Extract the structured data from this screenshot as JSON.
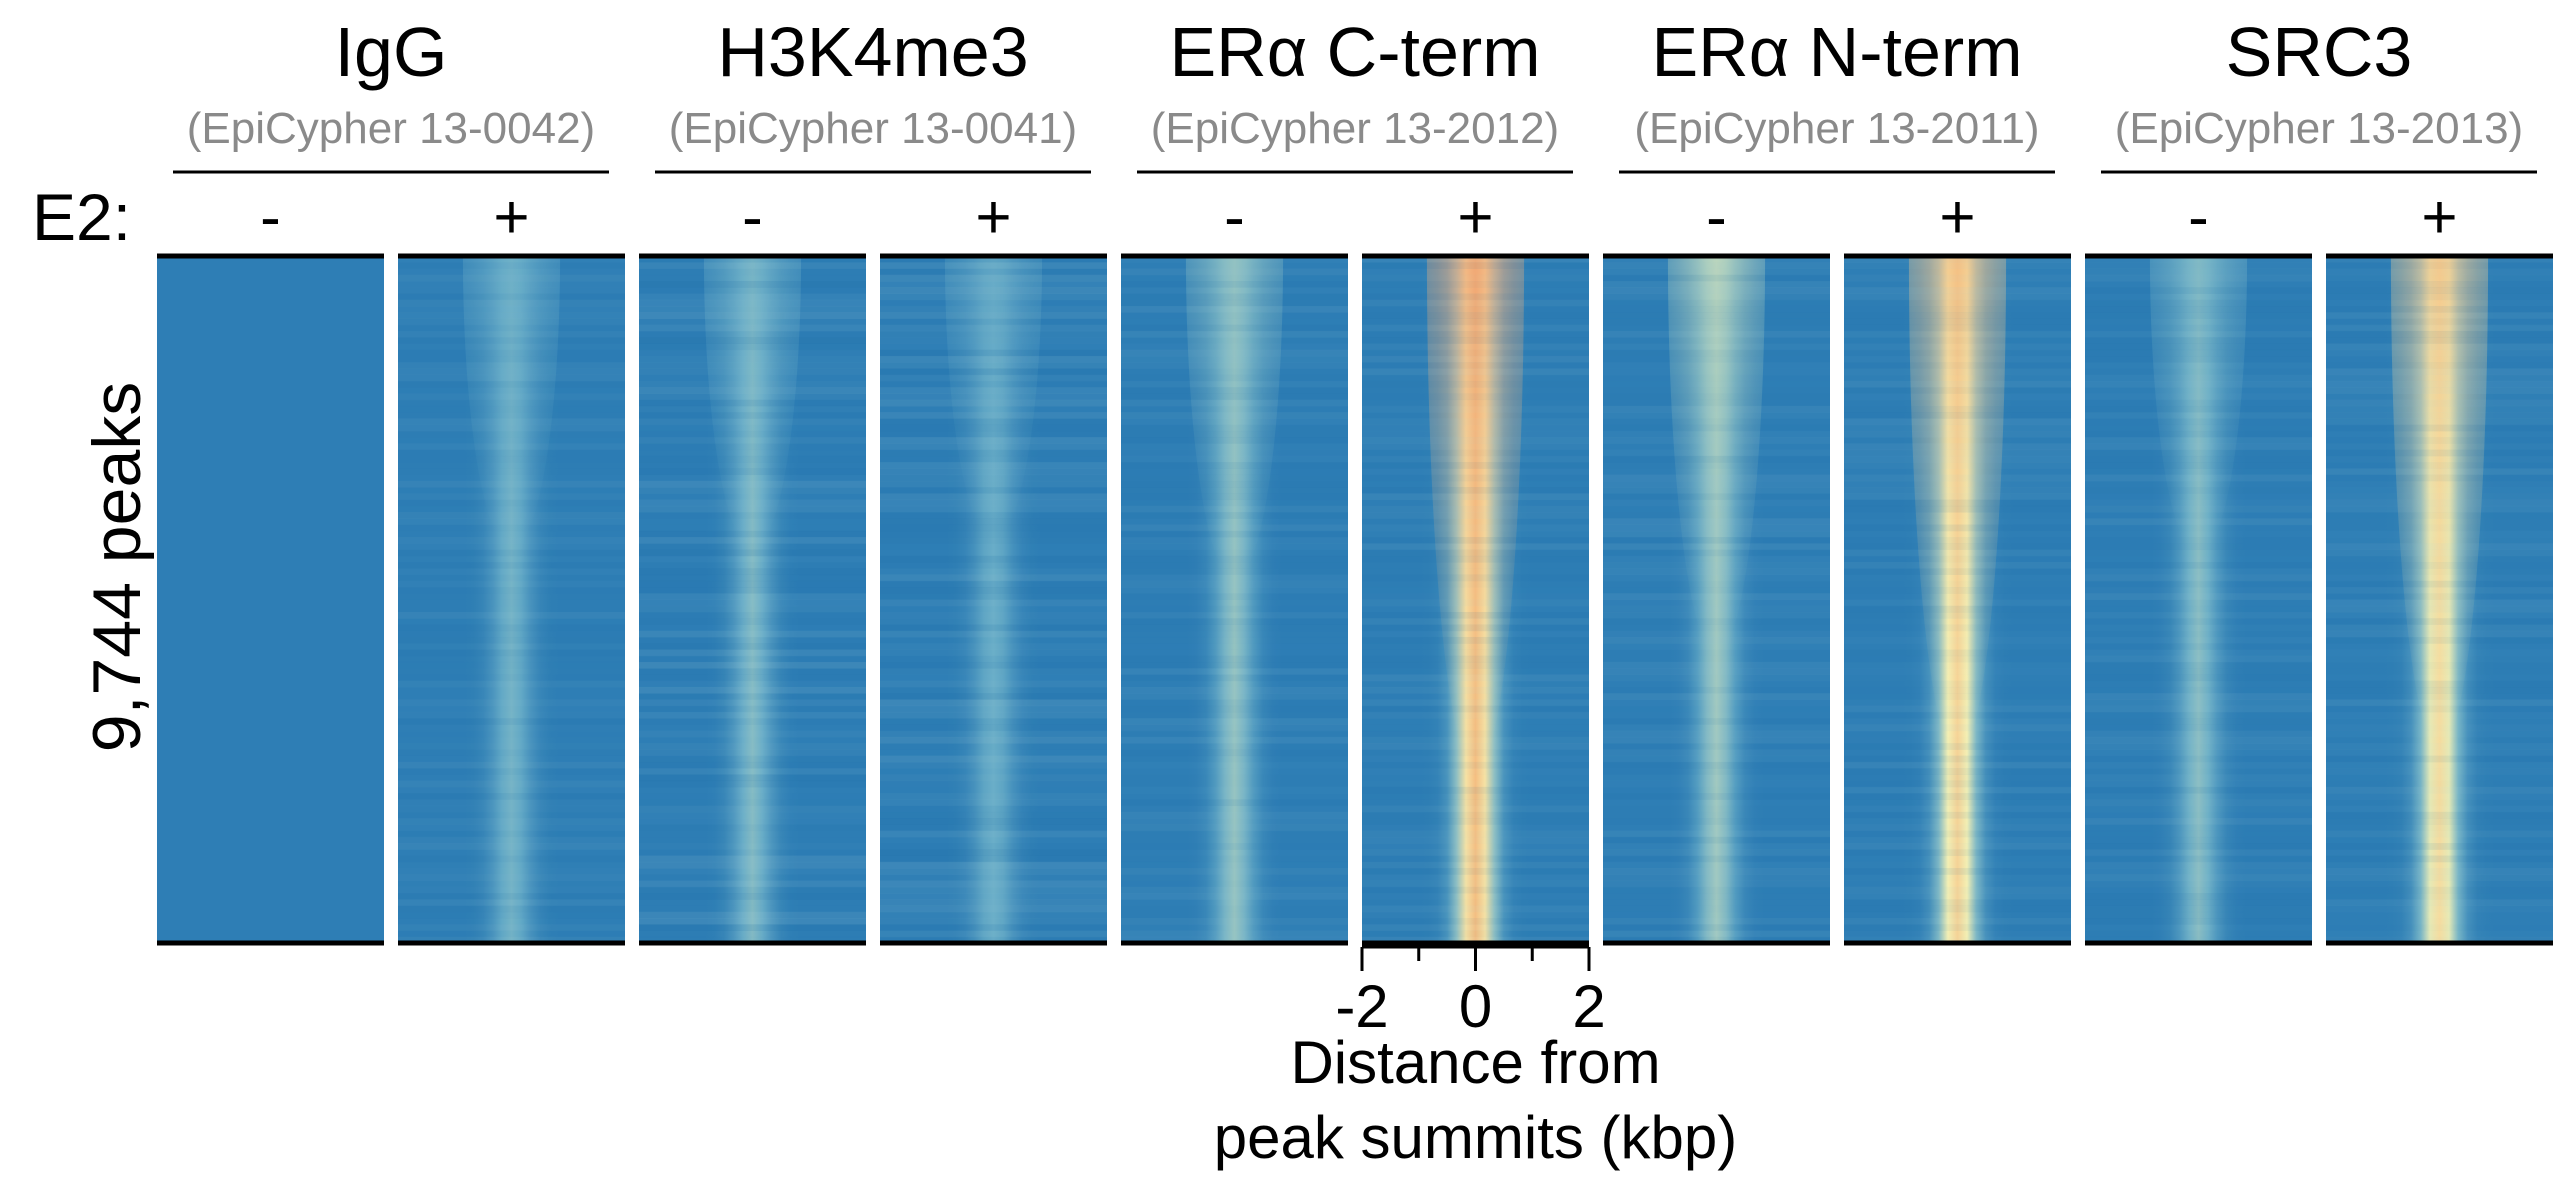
{
  "chart_data": {
    "type": "heatmap",
    "row_label": "9,744 peaks",
    "condition_label": "E2:",
    "colormap": [
      "#1f72b0",
      "#6aaec8",
      "#f7f2b3",
      "#f4a56a",
      "#dd2c34"
    ],
    "x_axis": {
      "label_line1": "Distance from",
      "label_line2": "peak summits (kbp)",
      "range": [
        -2,
        2
      ],
      "major_ticks": [
        -2,
        0,
        2
      ],
      "major_tick_labels": [
        "-2",
        "0",
        "2"
      ],
      "minor_ticks": [
        -1,
        1
      ]
    },
    "groups": [
      {
        "name": "IgG",
        "catalog": "(EpiCypher 13-0042)",
        "panels": [
          {
            "condition": "-",
            "signal": 0.0,
            "top_peak": 0.0,
            "noise": 0.03
          },
          {
            "condition": "+",
            "signal": 0.22,
            "top_peak": 0.28,
            "noise": 0.18
          }
        ]
      },
      {
        "name": "H3K4me3",
        "catalog": "(EpiCypher 13-0041)",
        "panels": [
          {
            "condition": "-",
            "signal": 0.25,
            "top_peak": 0.28,
            "noise": 0.3
          },
          {
            "condition": "+",
            "signal": 0.2,
            "top_peak": 0.25,
            "noise": 0.3
          }
        ]
      },
      {
        "name": "ERα C-term",
        "catalog": "(EpiCypher 13-2012)",
        "panels": [
          {
            "condition": "-",
            "signal": 0.28,
            "top_peak": 0.38,
            "noise": 0.2
          },
          {
            "condition": "+",
            "signal": 0.62,
            "top_peak": 1.0,
            "noise": 0.2
          }
        ]
      },
      {
        "name": "ERα N-term",
        "catalog": "(EpiCypher 13-2011)",
        "panels": [
          {
            "condition": "-",
            "signal": 0.3,
            "top_peak": 0.62,
            "noise": 0.2
          },
          {
            "condition": "+",
            "signal": 0.55,
            "top_peak": 0.95,
            "noise": 0.2
          }
        ]
      },
      {
        "name": "SRC3",
        "catalog": "(EpiCypher 13-2013)",
        "panels": [
          {
            "condition": "-",
            "signal": 0.26,
            "top_peak": 0.3,
            "noise": 0.2
          },
          {
            "condition": "+",
            "signal": 0.52,
            "top_peak": 0.93,
            "noise": 0.2
          }
        ]
      }
    ]
  }
}
